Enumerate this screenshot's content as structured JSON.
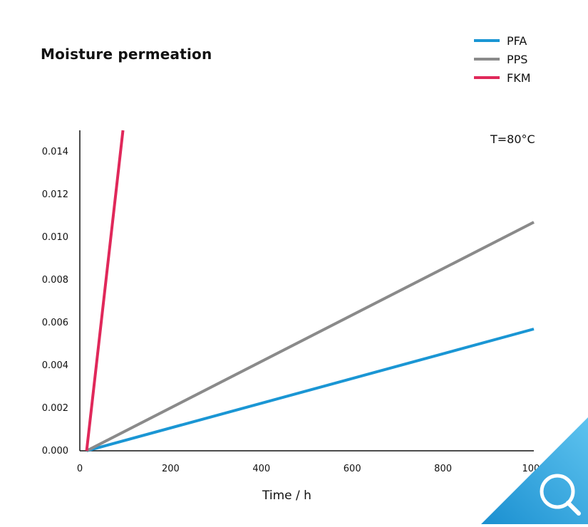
{
  "chart_data": {
    "type": "line",
    "title": "Moisture permeation",
    "xlabel": "Time / h",
    "ylabel": "",
    "xlim": [
      0,
      1000
    ],
    "ylim": [
      0,
      0.015
    ],
    "x_ticks": [
      "0",
      "200",
      "400",
      "600",
      "800",
      "1000"
    ],
    "y_ticks": [
      "0.000",
      "0.002",
      "0.004",
      "0.006",
      "0.008",
      "0.010",
      "0.012",
      "0.014"
    ],
    "annotation": "T=80°C",
    "grid": false,
    "legend_position": "top-right",
    "series": [
      {
        "name": "PFA",
        "color": "#1a96d4",
        "x": [
          15,
          1000
        ],
        "y": [
          0,
          0.0057
        ]
      },
      {
        "name": "PPS",
        "color": "#8a8a8a",
        "x": [
          15,
          1000
        ],
        "y": [
          0,
          0.0107
        ]
      },
      {
        "name": "FKM",
        "color": "#e0285a",
        "x": [
          15,
          95
        ],
        "y": [
          0,
          0.015
        ]
      }
    ]
  },
  "zoom_button": {
    "icon": "magnifier-icon",
    "color": "#1a96d4"
  }
}
